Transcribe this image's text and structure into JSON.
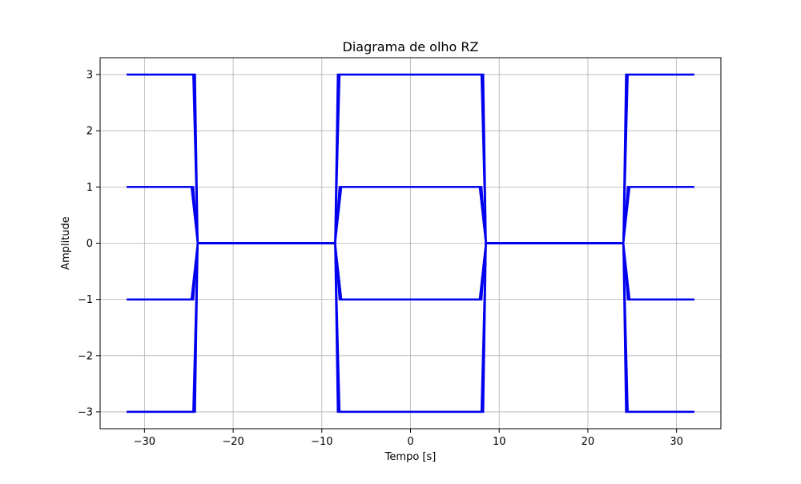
{
  "chart_data": {
    "type": "line",
    "title": "Diagrama de olho RZ",
    "xlabel": "Tempo [s]",
    "ylabel": "Amplitude",
    "xlim": [
      -35,
      35
    ],
    "ylim": [
      -3.3,
      3.3
    ],
    "xticks": [
      -30,
      -20,
      -10,
      0,
      10,
      20,
      30
    ],
    "yticks": [
      -3,
      -2,
      -1,
      0,
      1,
      2,
      3
    ],
    "xtick_labels": [
      "−30",
      "−20",
      "−10",
      "0",
      "10",
      "20",
      "30"
    ],
    "ytick_labels": [
      "−3",
      "−2",
      "−1",
      "0",
      "1",
      "2",
      "3"
    ],
    "grid": true,
    "line_color": "#0000ee",
    "levels": [
      -3,
      -1,
      1,
      3
    ],
    "traces": [
      {
        "x": [
          -32,
          -24.5,
          -24,
          -8.5,
          -8,
          8,
          8.5,
          24,
          24.5,
          32
        ],
        "y": [
          3,
          3,
          0,
          0,
          3,
          3,
          0,
          0,
          3,
          3
        ]
      },
      {
        "x": [
          -32,
          -24.5,
          -24,
          -8.5,
          -8,
          8,
          8.5,
          24,
          24.5,
          32
        ],
        "y": [
          1,
          1,
          0,
          0,
          1,
          1,
          0,
          0,
          1,
          1
        ]
      },
      {
        "x": [
          -32,
          -24.5,
          -24,
          -8.5,
          -8,
          8,
          8.5,
          24,
          24.5,
          32
        ],
        "y": [
          -1,
          -1,
          0,
          0,
          -1,
          -1,
          0,
          0,
          -1,
          -1
        ]
      },
      {
        "x": [
          -32,
          -24.5,
          -24,
          -8.5,
          -8,
          8,
          8.5,
          24,
          24.5,
          32
        ],
        "y": [
          -3,
          -3,
          0,
          0,
          -3,
          -3,
          0,
          0,
          -3,
          -3
        ]
      },
      {
        "x": [
          -32,
          -24.3,
          -24,
          -8.5,
          -8.2,
          8.2,
          8.5,
          24,
          24.3,
          32
        ],
        "y": [
          3,
          3,
          0,
          0,
          3,
          3,
          0,
          0,
          3,
          3
        ]
      },
      {
        "x": [
          -32,
          -24.3,
          -24,
          -8.5,
          -8.2,
          8.2,
          8.5,
          24,
          24.3,
          32
        ],
        "y": [
          -3,
          -3,
          0,
          0,
          -3,
          -3,
          0,
          0,
          -3,
          -3
        ]
      },
      {
        "x": [
          -32,
          -24.7,
          -24,
          -8.5,
          -7.8,
          7.8,
          8.5,
          24,
          24.7,
          32
        ],
        "y": [
          1,
          1,
          0,
          0,
          1,
          1,
          0,
          0,
          1,
          1
        ]
      },
      {
        "x": [
          -32,
          -24.7,
          -24,
          -8.5,
          -7.8,
          7.8,
          8.5,
          24,
          24.7,
          32
        ],
        "y": [
          -1,
          -1,
          0,
          0,
          -1,
          -1,
          0,
          0,
          -1,
          -1
        ]
      }
    ]
  }
}
